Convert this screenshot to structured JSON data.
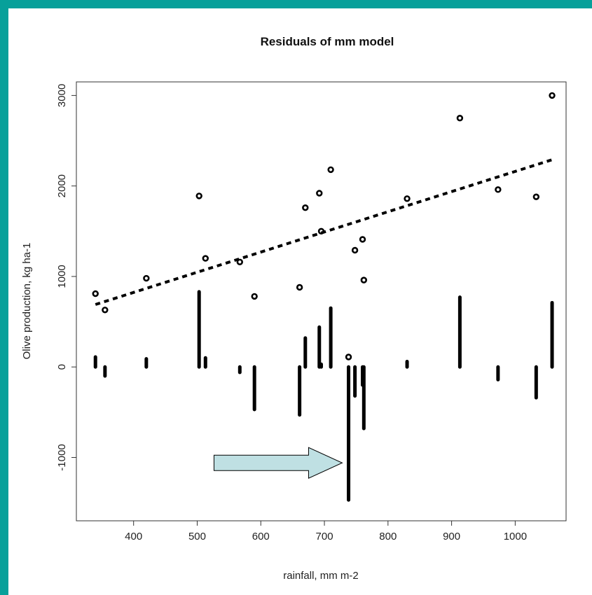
{
  "chart_data": {
    "type": "scatter",
    "title": "Residuals of mm model",
    "xlabel": "rainfall, mm m-2",
    "ylabel": "Olive production, kg ha-1",
    "xlim": [
      310,
      1080
    ],
    "ylim": [
      -1700,
      3150
    ],
    "x_ticks": [
      400,
      500,
      600,
      700,
      800,
      900,
      1000
    ],
    "y_ticks": [
      -1000,
      0,
      1000,
      2000,
      3000
    ],
    "series": [
      {
        "kind": "points",
        "x": [
          340,
          355,
          420,
          503,
          513,
          567,
          590,
          661,
          670,
          692,
          695,
          710,
          738,
          748,
          760,
          762,
          830,
          913,
          973,
          1033,
          1058
        ],
        "y": [
          810,
          630,
          980,
          1890,
          1200,
          1160,
          780,
          880,
          1760,
          1920,
          1500,
          2180,
          110,
          1290,
          1410,
          960,
          1860,
          2750,
          1960,
          1880,
          3000
        ]
      },
      {
        "kind": "regression-line",
        "x": [
          340,
          1058
        ],
        "y": [
          690,
          2290
        ]
      },
      {
        "kind": "residual-bars",
        "x": [
          340,
          355,
          420,
          503,
          513,
          567,
          590,
          661,
          670,
          692,
          695,
          710,
          738,
          748,
          760,
          762,
          830,
          913,
          973,
          1033,
          1058
        ],
        "y": [
          110,
          -100,
          90,
          830,
          100,
          -60,
          -470,
          -530,
          320,
          440,
          30,
          650,
          -1470,
          -320,
          -200,
          -680,
          60,
          770,
          -140,
          -340,
          710
        ]
      }
    ],
    "annotation": {
      "kind": "arrow",
      "points_to_x": 728,
      "points_to_y": -1060,
      "color": "#bfe0e3"
    }
  }
}
